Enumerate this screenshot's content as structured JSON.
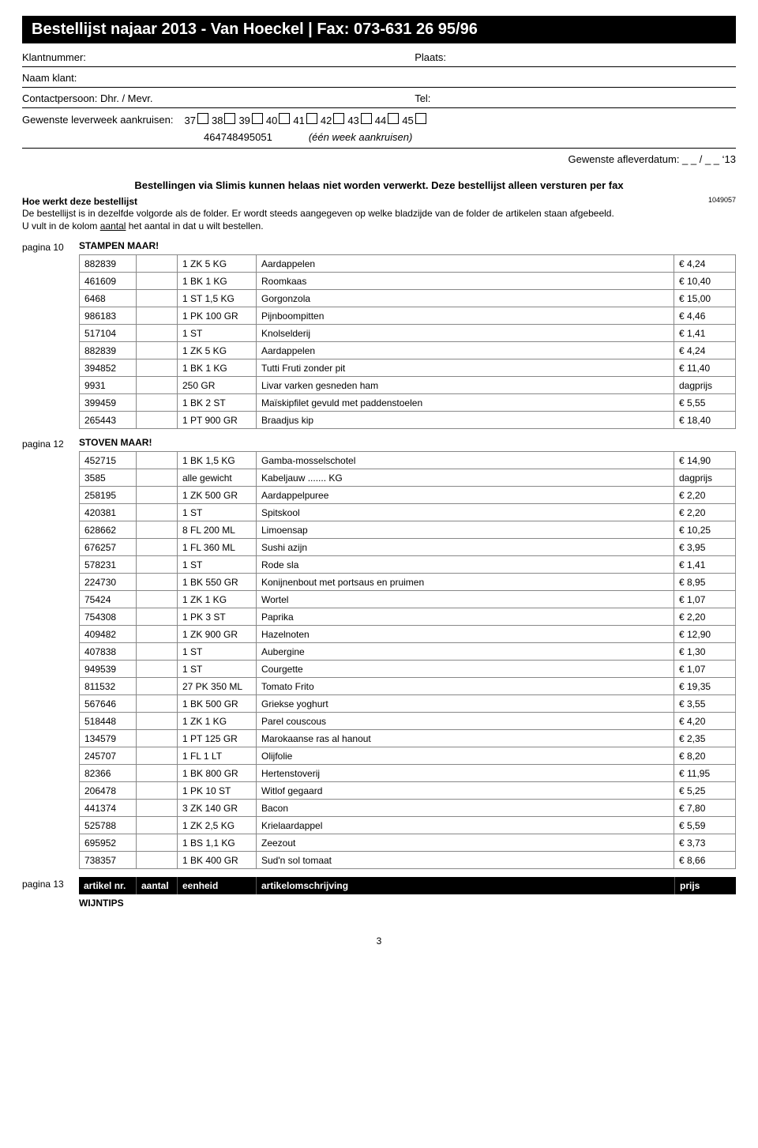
{
  "header": {
    "title": "Bestellijst najaar 2013 - Van Hoeckel  |  Fax: 073-631 26 95/96",
    "klantnummer_label": "Klantnummer:",
    "plaats_label": "Plaats:",
    "naam_label": "Naam klant:",
    "contact_label": "Contactpersoon: Dhr. / Mevr.",
    "tel_label": "Tel:",
    "leverweek_label": "Gewenste leverweek aankruisen:",
    "weeks_row1": [
      "37",
      "38",
      "39",
      "40",
      "41",
      "42",
      "43",
      "44",
      "45"
    ],
    "weeks_row2": [
      "46",
      "47",
      "48",
      "49",
      "50",
      "51"
    ],
    "week_suffix": "(één week aankruisen)",
    "afleverdatum": "Gewenste afleverdatum:   _ _  /  _ _   ‘13"
  },
  "warning": "Bestellingen via Slimis kunnen helaas niet worden verwerkt. Deze bestellijst alleen versturen per fax",
  "intro": {
    "heading": "Hoe werkt deze bestellijst",
    "code": "1049057",
    "line1": "De bestellijst is in dezelfde volgorde als de folder. Er wordt steeds aangegeven op welke bladzijde van de folder de artikelen staan afgebeeld.",
    "line2a": "U vult in de kolom ",
    "line2u": "aantal",
    "line2b": " het aantal in dat u wilt bestellen."
  },
  "sections": [
    {
      "page_label": "pagina 10",
      "title": "STAMPEN MAAR!",
      "rows": [
        {
          "artnr": "882839",
          "unit": "1 ZK 5 KG",
          "desc": "Aardappelen",
          "price": "€ 4,24"
        },
        {
          "artnr": "461609",
          "unit": "1 BK 1 KG",
          "desc": "Roomkaas",
          "price": "€ 10,40"
        },
        {
          "artnr": "6468",
          "unit": "1 ST 1,5 KG",
          "desc": "Gorgonzola",
          "price": "€ 15,00"
        },
        {
          "artnr": "986183",
          "unit": "1 PK 100 GR",
          "desc": "Pijnboompitten",
          "price": "€ 4,46"
        },
        {
          "artnr": "517104",
          "unit": "1 ST",
          "desc": "Knolselderij",
          "price": "€ 1,41"
        },
        {
          "artnr": "882839",
          "unit": "1 ZK 5 KG",
          "desc": "Aardappelen",
          "price": "€ 4,24"
        },
        {
          "artnr": "394852",
          "unit": "1 BK 1 KG",
          "desc": "Tutti Fruti zonder pit",
          "price": "€ 11,40"
        },
        {
          "artnr": "9931",
          "unit": "250 GR",
          "desc": "Livar varken gesneden ham",
          "price": "dagprijs"
        },
        {
          "artnr": "399459",
          "unit": "1 BK 2 ST",
          "desc": "Maïskipfilet gevuld met paddenstoelen",
          "price": "€ 5,55"
        },
        {
          "artnr": "265443",
          "unit": "1 PT 900 GR",
          "desc": "Braadjus kip",
          "price": "€ 18,40"
        }
      ]
    },
    {
      "page_label": "pagina 12",
      "title": "STOVEN MAAR!",
      "rows": [
        {
          "artnr": "452715",
          "unit": "1 BK 1,5 KG",
          "desc": "Gamba-mosselschotel",
          "price": "€ 14,90"
        },
        {
          "artnr": "3585",
          "unit": "alle gewicht",
          "desc": "Kabeljauw            ....... KG",
          "price": "dagprijs"
        },
        {
          "artnr": "258195",
          "unit": "1 ZK 500 GR",
          "desc": "Aardappelpuree",
          "price": "€ 2,20"
        },
        {
          "artnr": "420381",
          "unit": "1 ST",
          "desc": "Spitskool",
          "price": "€ 2,20"
        },
        {
          "artnr": "628662",
          "unit": "8 FL 200 ML",
          "desc": "Limoensap",
          "price": "€ 10,25"
        },
        {
          "artnr": "676257",
          "unit": "1 FL 360 ML",
          "desc": "Sushi azijn",
          "price": "€ 3,95"
        },
        {
          "artnr": "578231",
          "unit": "1 ST",
          "desc": "Rode sla",
          "price": "€ 1,41"
        },
        {
          "artnr": "224730",
          "unit": "1 BK 550 GR",
          "desc": "Konijnenbout met portsaus en pruimen",
          "price": "€ 8,95"
        },
        {
          "artnr": "75424",
          "unit": "1 ZK 1 KG",
          "desc": "Wortel",
          "price": "€ 1,07"
        },
        {
          "artnr": "754308",
          "unit": "1 PK 3 ST",
          "desc": "Paprika",
          "price": "€ 2,20"
        },
        {
          "artnr": "409482",
          "unit": "1 ZK 900 GR",
          "desc": "Hazelnoten",
          "price": "€ 12,90"
        },
        {
          "artnr": "407838",
          "unit": "1 ST",
          "desc": "Aubergine",
          "price": "€ 1,30"
        },
        {
          "artnr": "949539",
          "unit": "1 ST",
          "desc": "Courgette",
          "price": "€ 1,07"
        },
        {
          "artnr": "811532",
          "unit": "27 PK 350 ML",
          "desc": "Tomato Frito",
          "price": "€ 19,35"
        },
        {
          "artnr": "567646",
          "unit": "1 BK 500 GR",
          "desc": "Griekse yoghurt",
          "price": "€ 3,55"
        },
        {
          "artnr": "518448",
          "unit": "1 ZK 1 KG",
          "desc": "Parel couscous",
          "price": "€ 4,20"
        },
        {
          "artnr": "134579",
          "unit": "1 PT 125 GR",
          "desc": "Marokaanse ras al hanout",
          "price": "€ 2,35"
        },
        {
          "artnr": "245707",
          "unit": "1 FL 1 LT",
          "desc": "Olijfolie",
          "price": "€ 8,20"
        },
        {
          "artnr": "82366",
          "unit": "1 BK 800 GR",
          "desc": "Hertenstoverij",
          "price": "€ 11,95"
        },
        {
          "artnr": "206478",
          "unit": "1 PK 10 ST",
          "desc": "Witlof gegaard",
          "price": "€ 5,25"
        },
        {
          "artnr": "441374",
          "unit": "3 ZK 140 GR",
          "desc": "Bacon",
          "price": "€ 7,80"
        },
        {
          "artnr": "525788",
          "unit": "1 ZK 2,5 KG",
          "desc": "Krielaardappel",
          "price": "€ 5,59"
        },
        {
          "artnr": "695952",
          "unit": "1 BS 1,1 KG",
          "desc": "Zeezout",
          "price": "€ 3,73"
        },
        {
          "artnr": "738357",
          "unit": "1 BK 400 GR",
          "desc": "Sud'n sol tomaat",
          "price": "€ 8,66"
        }
      ]
    }
  ],
  "footer": {
    "c1": "artikel nr.",
    "c2": "aantal",
    "c3": "eenheid",
    "c4": "artikelomschrijving",
    "c5": "prijs",
    "page_label": "pagina 13",
    "section_title": "WIJNTIPS"
  },
  "page_number": "3"
}
